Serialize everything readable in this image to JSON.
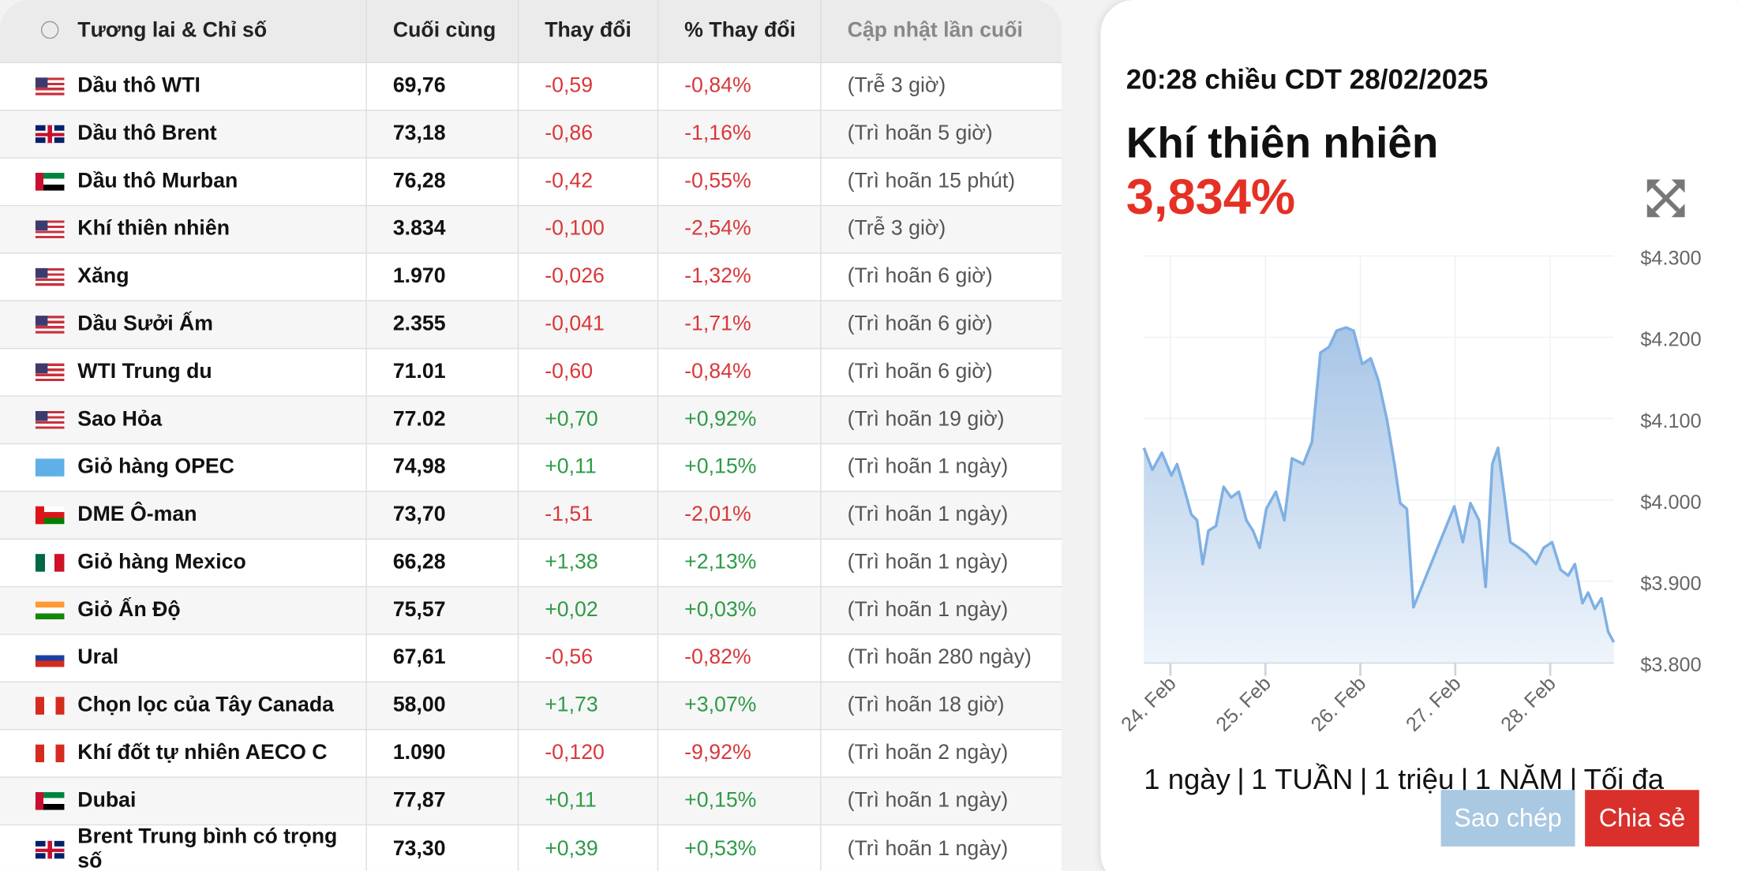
{
  "table": {
    "headers": [
      "Tương lai & Chỉ số",
      "Cuối cùng",
      "Thay đổi",
      "% Thay đổi",
      "Cập nhật lần cuối"
    ],
    "rows": [
      [
        "Dầu thô WTI",
        "69,76",
        "-0,59",
        "-0,84%",
        "(Trễ 3 giờ)"
      ],
      [
        "Dầu thô Brent",
        "73,18",
        "-0,86",
        "-1,16%",
        "(Trì hoãn 5 giờ)"
      ],
      [
        "Dầu thô Murban",
        "76,28",
        "-0,42",
        "-0,55%",
        "(Trì hoãn 15 phút)"
      ],
      [
        "Khí thiên nhiên",
        "3.834",
        "-0,100",
        "-2,54%",
        "(Trễ 3 giờ)"
      ],
      [
        "Xăng",
        "1.970",
        "-0,026",
        "-1,32%",
        "(Trì hoãn 6 giờ)"
      ],
      [
        "Dầu Sưởi Ấm",
        "2.355",
        "-0,041",
        "-1,71%",
        "(Trì hoãn 6 giờ)"
      ],
      [
        "WTI Trung du",
        "71.01",
        "-0,60",
        "-0,84%",
        "(Trì hoãn 6 giờ)"
      ],
      [
        "Sao Hỏa",
        "77.02",
        "+0,70",
        "+0,92%",
        "(Trì hoãn 19 giờ)"
      ],
      [
        "Giỏ hàng OPEC",
        "74,98",
        "+0,11",
        "+0,15%",
        "(Trì hoãn 1 ngày)"
      ],
      [
        "DME Ô-man",
        "73,70",
        "-1,51",
        "-2,01%",
        "(Trì hoãn 1 ngày)"
      ],
      [
        "Giỏ hàng Mexico",
        "66,28",
        "+1,38",
        "+2,13%",
        "(Trì hoãn 1 ngày)"
      ],
      [
        "Giỏ Ấn Độ",
        "75,57",
        "+0,02",
        "+0,03%",
        "(Trì hoãn 1 ngày)"
      ],
      [
        "Ural",
        "67,61",
        "-0,56",
        "-0,82%",
        "(Trì hoãn 280 ngày)"
      ],
      [
        "Chọn lọc của Tây Canada",
        "58,00",
        "+1,73",
        "+3,07%",
        "(Trì hoãn 18 giờ)"
      ],
      [
        "Khí đốt tự nhiên AECO C",
        "1.090",
        "-0,120",
        "-9,92%",
        "(Trì hoãn 2 ngày)"
      ],
      [
        "Dubai",
        "77,87",
        "+0,11",
        "+0,15%",
        "(Trì hoãn 1 ngày)"
      ],
      [
        "Brent Trung bình có trọng số",
        "73,30",
        "+0,39",
        "+0,53%",
        "(Trì hoãn 1 ngày)"
      ]
    ]
  },
  "panel": {
    "timestamp": "20:28 chiều CDT 28/02/2025",
    "title": "Khí thiên nhiên",
    "value": "3,834%",
    "chart": {
      "type": "line",
      "x": [
        23.72,
        23.81,
        23.91,
        24.01,
        24.07,
        24.14,
        24.22,
        24.28,
        24.34,
        24.4,
        24.48,
        24.56,
        24.64,
        24.72,
        24.8,
        24.87,
        24.94,
        25.01,
        25.11,
        25.2,
        25.28,
        25.4,
        25.49,
        25.58,
        25.67,
        25.75,
        25.85,
        25.93,
        26.02,
        26.11,
        26.19,
        26.28,
        26.36,
        26.42,
        26.49,
        26.56,
        26.99,
        27.08,
        27.16,
        27.25,
        27.32,
        27.39,
        27.45,
        27.52,
        27.58,
        27.67,
        27.75,
        27.85,
        27.93,
        28.02,
        28.11,
        28.19,
        28.26,
        28.34,
        28.4,
        28.47,
        28.54,
        28.61,
        28.67
      ],
      "series": [
        {
          "color": "#7fb0e3",
          "values": [
            4.064,
            4.037,
            4.058,
            4.03,
            4.044,
            4.016,
            3.982,
            3.975,
            3.921,
            3.962,
            3.968,
            4.016,
            4.003,
            4.01,
            3.975,
            3.962,
            3.941,
            3.989,
            4.01,
            3.975,
            4.051,
            4.044,
            4.071,
            4.181,
            4.188,
            4.208,
            4.212,
            4.208,
            4.167,
            4.174,
            4.147,
            4.099,
            4.044,
            3.996,
            3.989,
            3.868,
            3.992,
            3.948,
            3.996,
            3.975,
            3.893,
            4.044,
            4.064,
            4.003,
            3.948,
            3.941,
            3.934,
            3.921,
            3.941,
            3.948,
            3.914,
            3.907,
            3.921,
            3.873,
            3.886,
            3.866,
            3.879,
            3.838,
            3.825
          ]
        }
      ],
      "xlim": [
        23.72,
        28.67
      ],
      "ylim": [
        3.8,
        4.3
      ],
      "xticks": [
        {
          "value": 24,
          "label": "24. Feb"
        },
        {
          "value": 25,
          "label": "25. Feb"
        },
        {
          "value": 26,
          "label": "26. Feb"
        },
        {
          "value": 27,
          "label": "27. Feb"
        },
        {
          "value": 28,
          "label": "28. Feb"
        }
      ],
      "yticks": [
        {
          "value": 3.8,
          "label": "$3.800"
        },
        {
          "value": 3.9,
          "label": "$3.900"
        },
        {
          "value": 4.0,
          "label": "$4.000"
        },
        {
          "value": 4.1,
          "label": "$4.100"
        },
        {
          "value": 4.2,
          "label": "$4.200"
        },
        {
          "value": 4.3,
          "label": "$4.300"
        }
      ],
      "grid": true
    },
    "ranges": [
      "1 ngày",
      "1 TUẦN",
      "1 triệu",
      "1 NĂM",
      "Tối đa"
    ],
    "buttons": [
      "Sao chép",
      "Chia sẻ"
    ]
  }
}
